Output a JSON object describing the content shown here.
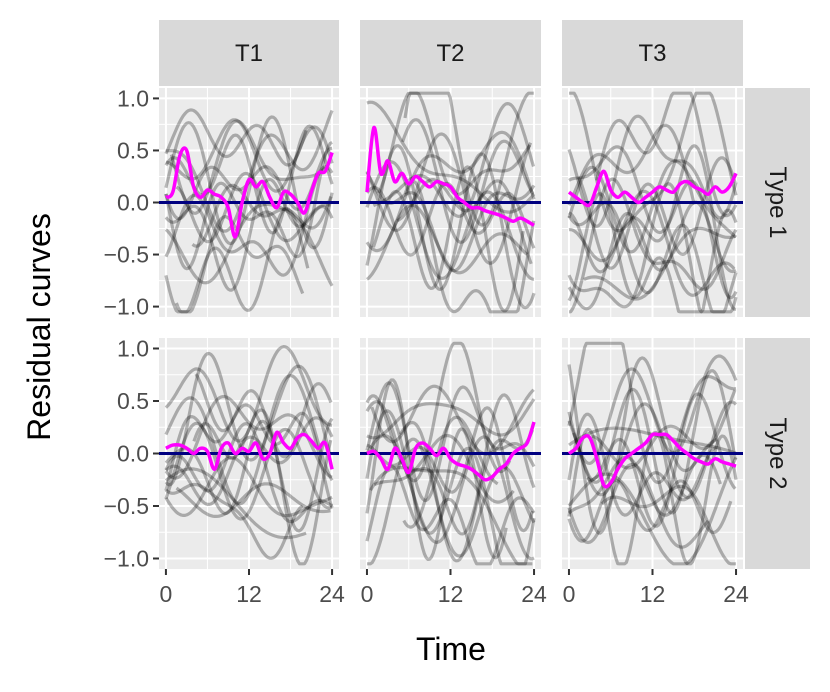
{
  "chart_data": {
    "type": "line",
    "title": "",
    "xlabel": "Time",
    "ylabel": "Residual curves",
    "column_facets": [
      "T1",
      "T2",
      "T3"
    ],
    "row_facets": [
      "Type 1",
      "Type 2"
    ],
    "x_ticks": [
      0,
      12,
      24
    ],
    "y_ticks": [
      -1.0,
      -0.5,
      0.0,
      0.5,
      1.0
    ],
    "y_tick_labels": [
      "−1.0",
      "−0.5",
      "0.0",
      "0.5",
      "1.0"
    ],
    "xlim": [
      -1,
      25
    ],
    "ylim": [
      -1.1,
      1.1
    ],
    "grid": true,
    "reference_line": {
      "y": 0.0,
      "color": "#000080"
    },
    "colors": {
      "panel_bg": "#ebebeb",
      "grid": "#ffffff",
      "strip_bg": "#d9d9d9",
      "mean": "#ff00ff",
      "residual": "#000000"
    },
    "residual_curve_count_per_panel": 15,
    "mean_curves": [
      {
        "col": "T1",
        "row": "Type 1",
        "x": [
          0,
          1,
          2,
          3,
          4,
          5,
          6,
          7,
          8,
          9,
          10,
          11,
          12,
          13,
          14,
          15,
          16,
          17,
          18,
          19,
          20,
          21,
          22,
          23,
          24
        ],
        "y": [
          0.05,
          0.1,
          0.45,
          0.5,
          0.15,
          0.05,
          0.12,
          0.08,
          0.05,
          -0.05,
          -0.33,
          0.0,
          0.22,
          0.15,
          0.2,
          0.05,
          -0.05,
          0.1,
          0.08,
          0.0,
          -0.1,
          0.1,
          0.28,
          0.3,
          0.48
        ]
      },
      {
        "col": "T2",
        "row": "Type 1",
        "x": [
          0,
          1,
          2,
          3,
          4,
          5,
          6,
          7,
          8,
          9,
          10,
          11,
          12,
          13,
          14,
          15,
          16,
          17,
          18,
          19,
          20,
          21,
          22,
          23,
          24
        ],
        "y": [
          0.1,
          0.72,
          0.28,
          0.4,
          0.2,
          0.28,
          0.18,
          0.25,
          0.2,
          0.15,
          0.2,
          0.18,
          0.15,
          0.05,
          0.0,
          -0.05,
          -0.05,
          -0.08,
          -0.1,
          -0.12,
          -0.15,
          -0.18,
          -0.15,
          -0.18,
          -0.22
        ]
      },
      {
        "col": "T3",
        "row": "Type 1",
        "x": [
          0,
          1,
          2,
          3,
          4,
          5,
          6,
          7,
          8,
          9,
          10,
          11,
          12,
          13,
          14,
          15,
          16,
          17,
          18,
          19,
          20,
          21,
          22,
          23,
          24
        ],
        "y": [
          0.1,
          0.05,
          0.0,
          -0.02,
          0.15,
          0.3,
          0.12,
          0.05,
          0.1,
          0.05,
          0.0,
          0.05,
          0.1,
          0.15,
          0.12,
          0.1,
          0.18,
          0.2,
          0.15,
          0.12,
          0.08,
          0.15,
          0.1,
          0.15,
          0.28
        ]
      },
      {
        "col": "T1",
        "row": "Type 2",
        "x": [
          0,
          1,
          2,
          3,
          4,
          5,
          6,
          7,
          8,
          9,
          10,
          11,
          12,
          13,
          14,
          15,
          16,
          17,
          18,
          19,
          20,
          21,
          22,
          23,
          24
        ],
        "y": [
          0.05,
          0.08,
          0.08,
          0.05,
          0.0,
          0.05,
          0.02,
          -0.15,
          0.05,
          0.1,
          0.0,
          0.05,
          0.02,
          0.1,
          -0.05,
          0.0,
          0.2,
          0.1,
          0.05,
          0.15,
          0.18,
          0.12,
          0.05,
          0.1,
          -0.15
        ]
      },
      {
        "col": "T2",
        "row": "Type 2",
        "x": [
          0,
          1,
          2,
          3,
          4,
          5,
          6,
          7,
          8,
          9,
          10,
          11,
          12,
          13,
          14,
          15,
          16,
          17,
          18,
          19,
          20,
          21,
          22,
          23,
          24
        ],
        "y": [
          0.0,
          0.02,
          -0.05,
          -0.15,
          0.05,
          -0.05,
          -0.18,
          0.05,
          0.1,
          0.05,
          -0.02,
          0.05,
          -0.05,
          -0.1,
          -0.12,
          -0.15,
          -0.2,
          -0.25,
          -0.22,
          -0.15,
          -0.1,
          0.0,
          0.05,
          0.1,
          0.3
        ]
      },
      {
        "col": "T3",
        "row": "Type 2",
        "x": [
          0,
          1,
          2,
          3,
          4,
          5,
          6,
          7,
          8,
          9,
          10,
          11,
          12,
          13,
          14,
          15,
          16,
          17,
          18,
          19,
          20,
          21,
          22,
          23,
          24
        ],
        "y": [
          0.0,
          0.05,
          0.15,
          0.15,
          -0.05,
          -0.3,
          -0.28,
          -0.15,
          -0.05,
          0.0,
          0.05,
          0.1,
          0.18,
          0.18,
          0.18,
          0.12,
          0.05,
          0.0,
          -0.05,
          -0.08,
          -0.1,
          -0.05,
          -0.08,
          -0.1,
          -0.12
        ]
      }
    ]
  }
}
